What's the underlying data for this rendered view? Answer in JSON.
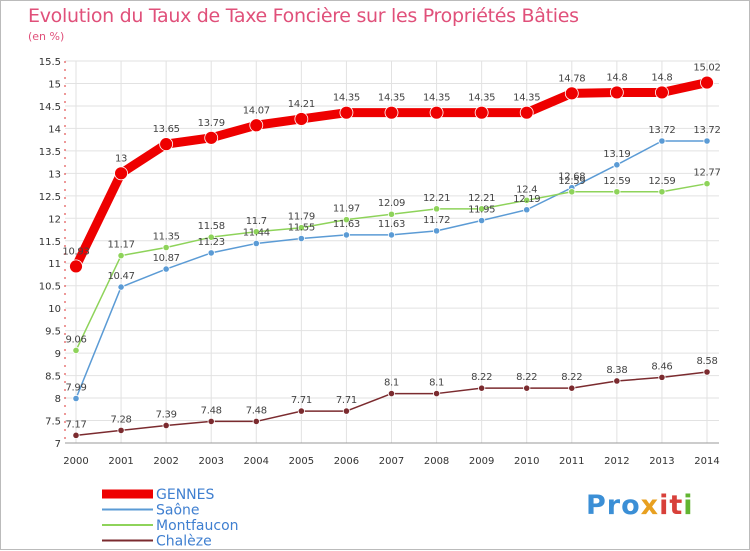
{
  "chart_data": {
    "type": "line",
    "title": "Evolution du Taux de Taxe Foncière sur les Propriétés Bâties",
    "unit_label": "(en %)",
    "xlabel": "",
    "ylabel": "",
    "ylim": [
      7,
      15.5
    ],
    "y_ticks": [
      "7",
      "7.5",
      "8",
      "8.5",
      "9",
      "9.5",
      "10",
      "10.5",
      "11",
      "11.5",
      "12",
      "12.5",
      "13",
      "13.5",
      "14",
      "14.5",
      "15",
      "15.5"
    ],
    "categories": [
      "2000",
      "2001",
      "2002",
      "2003",
      "2004",
      "2005",
      "2006",
      "2007",
      "2008",
      "2009",
      "2010",
      "2011",
      "2012",
      "2013",
      "2014"
    ],
    "series": [
      {
        "name": "GENNES",
        "color": "#ee0000",
        "values": [
          10.93,
          13,
          13.65,
          13.79,
          14.07,
          14.21,
          14.35,
          14.35,
          14.35,
          14.35,
          14.35,
          14.78,
          14.8,
          14.8,
          15.02
        ],
        "labels": [
          "10.93",
          "13",
          "13.65",
          "13.79",
          "14.07",
          "14.21",
          "14.35",
          "14.35",
          "14.35",
          "14.35",
          "14.35",
          "14.78",
          "14.8",
          "14.8",
          "15.02"
        ]
      },
      {
        "name": "Saône",
        "color": "#5b9bd5",
        "values": [
          7.99,
          10.47,
          10.87,
          11.23,
          11.44,
          11.55,
          11.63,
          11.63,
          11.72,
          11.95,
          12.19,
          12.68,
          13.19,
          13.72,
          13.72
        ],
        "labels": [
          "7.99",
          "10.47",
          "10.87",
          "11.23",
          "11.44",
          "11.55",
          "11.63",
          "11.63",
          "11.72",
          "11.95",
          "12.19",
          "12.68",
          "13.19",
          "13.72",
          "13.72"
        ]
      },
      {
        "name": "Montfaucon",
        "color": "#8ed35a",
        "values": [
          9.06,
          11.17,
          11.35,
          11.58,
          11.7,
          11.79,
          11.97,
          12.09,
          12.21,
          12.21,
          12.4,
          12.59,
          12.59,
          12.59,
          12.77
        ],
        "labels": [
          "9.06",
          "11.17",
          "11.35",
          "11.58",
          "11.7",
          "11.79",
          "11.97",
          "12.09",
          "12.21",
          "12.21",
          "12.4",
          "12.59",
          "12.59",
          "12.59",
          "12.77"
        ]
      },
      {
        "name": "Chalèze",
        "color": "#7b2b2f",
        "values": [
          7.17,
          7.28,
          7.39,
          7.48,
          7.48,
          7.71,
          7.71,
          8.1,
          8.1,
          8.22,
          8.22,
          8.22,
          8.38,
          8.46,
          8.58
        ],
        "labels": [
          "7.17",
          "7.28",
          "7.39",
          "7.48",
          "7.48",
          "7.71",
          "7.71",
          "8.1",
          "8.1",
          "8.22",
          "8.22",
          "8.22",
          "8.38",
          "8.46",
          "8.58"
        ]
      }
    ],
    "legend_position": "bottom-left",
    "grid": true
  },
  "brand": {
    "logo_parts": [
      "Pro",
      "x",
      "it",
      "i"
    ]
  }
}
